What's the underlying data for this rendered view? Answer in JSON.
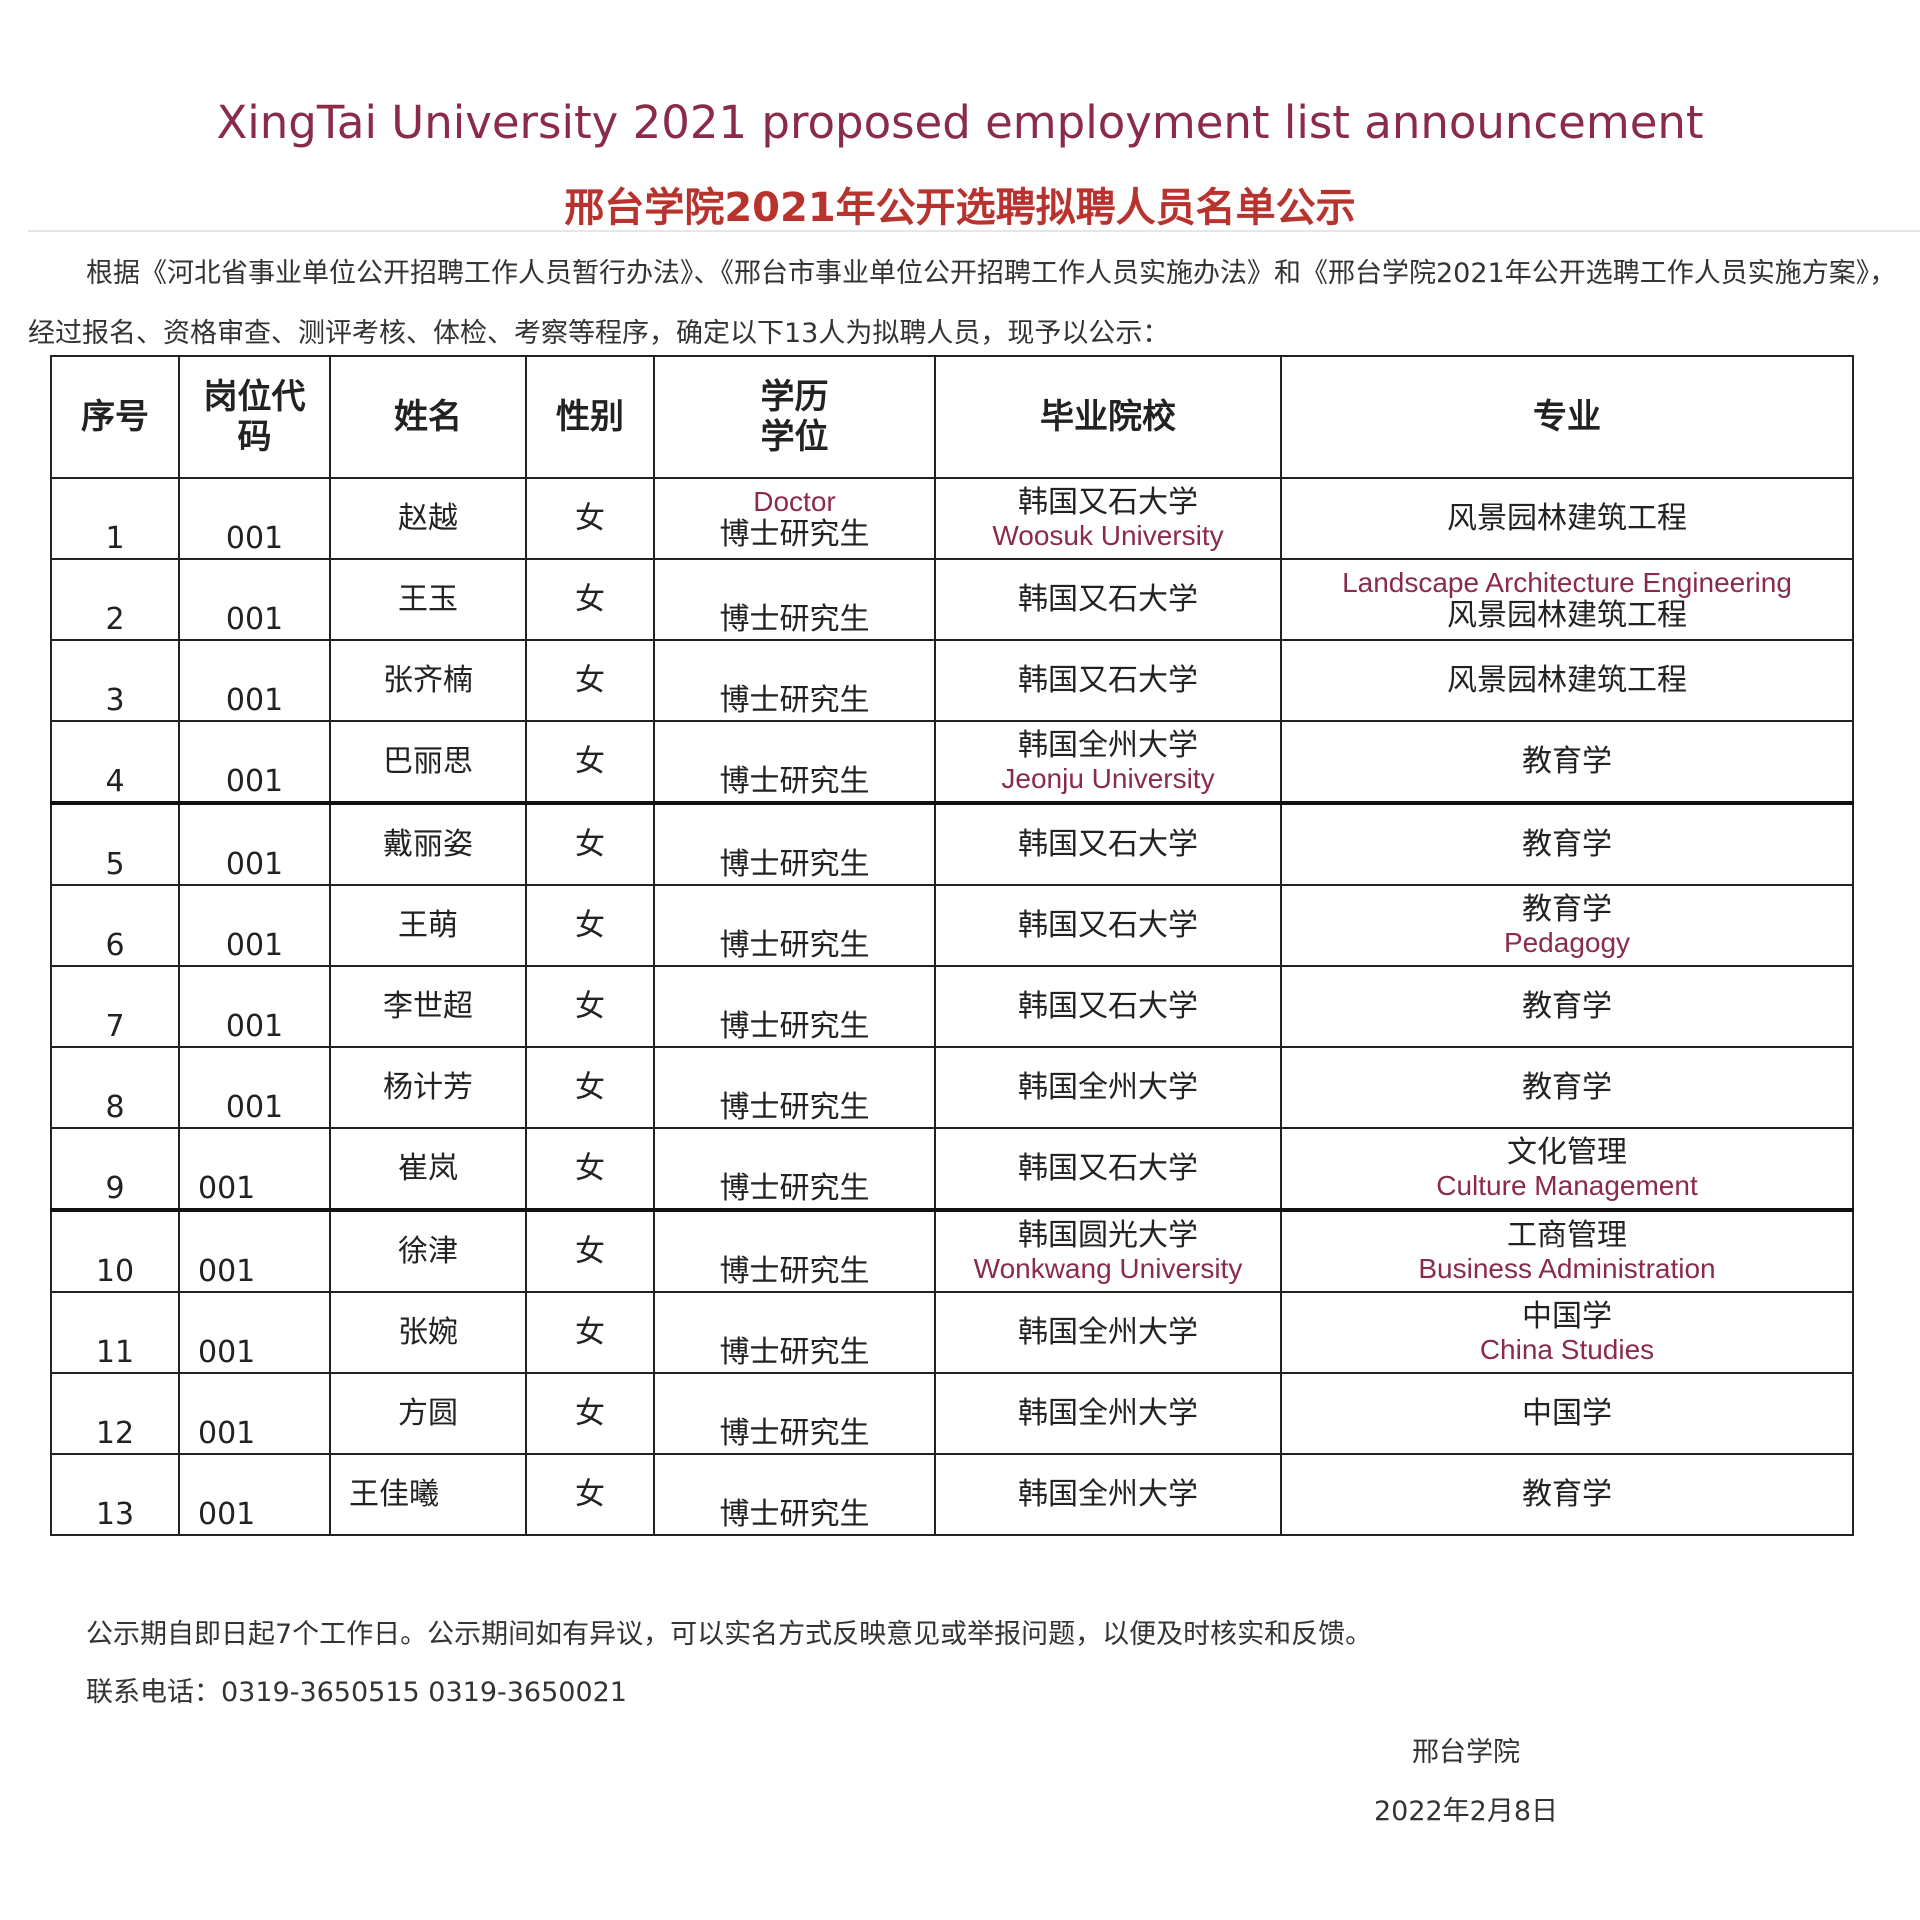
{
  "title_en": "XingTai University 2021 proposed employment list announcement",
  "title_cn": "邢台学院2021年公开选聘拟聘人员名单公示",
  "intro": "根据《河北省事业单位公开招聘工作人员暂行办法》、《邢台市事业单位公开招聘工作人员实施办法》和《邢台学院2021年公开选聘工作人员实施方案》，经过报名、资格审查、测评考核、体检、考察等程序，确定以下13人为拟聘人员，现予以公示：",
  "headers": [
    "序号",
    "岗位代码",
    "姓名",
    "性别",
    "学历学位",
    "毕业院校",
    "专业"
  ],
  "rows": [
    {
      "no": "1",
      "code": "001",
      "name": "赵越",
      "gender": "女",
      "degree": "博士研究生",
      "school": "韩国又石大学",
      "major": "风景园林建筑工程"
    },
    {
      "no": "2",
      "code": "001",
      "name": "王玉",
      "gender": "女",
      "degree": "博士研究生",
      "school": "韩国又石大学",
      "major": "风景园林建筑工程"
    },
    {
      "no": "3",
      "code": "001",
      "name": "张齐楠",
      "gender": "女",
      "degree": "博士研究生",
      "school": "韩国又石大学",
      "major": "风景园林建筑工程"
    },
    {
      "no": "4",
      "code": "001",
      "name": "巴丽思",
      "gender": "女",
      "degree": "博士研究生",
      "school": "韩国全州大学",
      "major": "教育学"
    },
    {
      "no": "5",
      "code": "001",
      "name": "戴丽姿",
      "gender": "女",
      "degree": "博士研究生",
      "school": "韩国又石大学",
      "major": "教育学"
    },
    {
      "no": "6",
      "code": "001",
      "name": "王萌",
      "gender": "女",
      "degree": "博士研究生",
      "school": "韩国又石大学",
      "major": "教育学"
    },
    {
      "no": "7",
      "code": "001",
      "name": "李世超",
      "gender": "女",
      "degree": "博士研究生",
      "school": "韩国又石大学",
      "major": "教育学"
    },
    {
      "no": "8",
      "code": "001",
      "name": "杨计芳",
      "gender": "女",
      "degree": "博士研究生",
      "school": "韩国全州大学",
      "major": "教育学"
    },
    {
      "no": "9",
      "code": "001",
      "name": "崔岚",
      "gender": "女",
      "degree": "博士研究生",
      "school": "韩国又石大学",
      "major": "文化管理"
    },
    {
      "no": "10",
      "code": "001",
      "name": "徐津",
      "gender": "女",
      "degree": "博士研究生",
      "school": "韩国圆光大学",
      "major": "工商管理"
    },
    {
      "no": "11",
      "code": "001",
      "name": "张婉",
      "gender": "女",
      "degree": "博士研究生",
      "school": "韩国全州大学",
      "major": "中国学"
    },
    {
      "no": "12",
      "code": "001",
      "name": "方圆",
      "gender": "女",
      "degree": "博士研究生",
      "school": "韩国全州大学",
      "major": "中国学"
    },
    {
      "no": "13",
      "code": "001",
      "name": "王佳曦",
      "gender": "女",
      "degree": "博士研究生",
      "school": "韩国全州大学",
      "major": "教育学"
    }
  ],
  "annotations": {
    "doctor": "Doctor",
    "woosuk": "Woosuk University",
    "landscape": "Landscape Architecture Engineering",
    "jeonju": "Jeonju University",
    "pedagogy": "Pedagogy",
    "culture": "Culture Management",
    "wonkwang": "Wonkwang University",
    "business": "Business Administration",
    "china": "China Studies"
  },
  "footer": {
    "notice": "公示期自即日起7个工作日。公示期间如有异议，可以实名方式反映意见或举报问题，以便及时核实和反馈。",
    "contact": "联系电话：0319-3650515 0319-3650021",
    "signature": "邢台学院",
    "date": "2022年2月8日"
  },
  "colors": {
    "annotation": "#8a2b48",
    "title_cn": "#b8322e"
  }
}
